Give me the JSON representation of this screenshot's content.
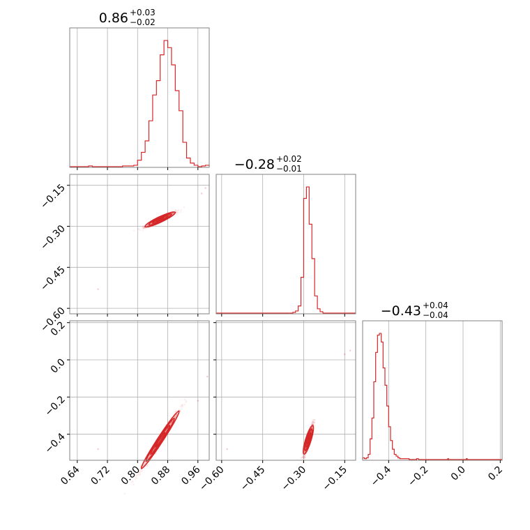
{
  "colors": {
    "accent": "#d62728",
    "grid": "#b0b0b0",
    "frame": "#808080"
  },
  "chart_data": {
    "type": "corner",
    "parameters": [
      {
        "title": {
          "main": "0.86",
          "plus": "+0.03",
          "minus": "−0.02"
        },
        "range": [
          0.62,
          0.99
        ],
        "ticks": [
          0.64,
          0.72,
          0.8,
          0.88,
          0.96
        ],
        "tick_labels": [
          "0.64",
          "0.72",
          "0.80",
          "0.88",
          "0.96"
        ],
        "hist": {
          "x": [
            0.625,
            0.635,
            0.645,
            0.655,
            0.665,
            0.675,
            0.685,
            0.695,
            0.705,
            0.715,
            0.725,
            0.735,
            0.745,
            0.755,
            0.765,
            0.775,
            0.785,
            0.795,
            0.805,
            0.815,
            0.825,
            0.835,
            0.845,
            0.855,
            0.865,
            0.875,
            0.885,
            0.895,
            0.905,
            0.915,
            0.925,
            0.935,
            0.945,
            0.955,
            0.965,
            0.975,
            0.985
          ],
          "y": [
            0,
            0,
            0,
            0,
            0,
            0.5,
            0,
            0,
            0,
            0,
            0,
            0,
            0,
            0,
            0.5,
            0.5,
            0.5,
            1,
            4.5,
            10,
            18,
            32,
            50,
            60,
            78,
            88,
            83,
            71,
            53,
            39,
            17,
            6,
            2.5,
            1,
            0,
            0.5,
            1
          ]
        }
      },
      {
        "title": {
          "main": "−0.28",
          "plus": "+0.02",
          "minus": "−0.01"
        },
        "range": [
          -0.62,
          -0.11
        ],
        "ticks": [
          -0.6,
          -0.45,
          -0.3,
          -0.15
        ],
        "tick_labels": [
          "−0.60",
          "−0.45",
          "−0.30",
          "−0.15"
        ],
        "tick_labels_y": [
          "−0.60",
          "−0.45",
          "−0.30",
          "−0.15"
        ],
        "hist": {
          "x": [
            -0.345,
            -0.335,
            -0.325,
            -0.315,
            -0.305,
            -0.295,
            -0.285,
            -0.275,
            -0.265,
            -0.255,
            -0.245,
            -0.235
          ],
          "y": [
            0,
            0.5,
            1.5,
            5,
            25,
            80,
            88,
            62,
            38,
            12,
            3,
            1
          ]
        }
      },
      {
        "title": {
          "main": "−0.43",
          "plus": "+0.04",
          "minus": "−0.04"
        },
        "range": [
          -0.54,
          0.21
        ],
        "ticks": [
          -0.4,
          -0.2,
          0.0,
          0.2
        ],
        "tick_labels": [
          "−0.4",
          "−0.2",
          "0.0",
          "0.2"
        ],
        "hist": {
          "x": [
            -0.535,
            -0.525,
            -0.515,
            -0.505,
            -0.495,
            -0.485,
            -0.475,
            -0.465,
            -0.455,
            -0.445,
            -0.435,
            -0.425,
            -0.415,
            -0.405,
            -0.395,
            -0.385,
            -0.375,
            -0.365,
            -0.355,
            -0.345,
            -0.335,
            -0.325,
            -0.315,
            -0.305,
            -0.295,
            -0.285,
            -0.275,
            -0.265,
            -0.255,
            -0.245
          ],
          "y": [
            1,
            0.5,
            1,
            3,
            12,
            24,
            45,
            62,
            72,
            73,
            68,
            53,
            43,
            31,
            19,
            11,
            6,
            3,
            2,
            1,
            0.5,
            0.5,
            0.5,
            0.5,
            0.5,
            0,
            0,
            0,
            0,
            0.5
          ]
        },
        "hist_extra": {
          "x": [
            -0.08,
            0.02
          ],
          "y": [
            0.5,
            0.5
          ]
        }
      }
    ],
    "scatter": [
      {
        "pair": [
          0,
          1
        ],
        "mean": [
          0.86,
          -0.275
        ],
        "sd_x": 0.02,
        "corr_slope": 0.65,
        "sd_perp": 0.004,
        "outliers": [
          [
            0.695,
            -0.53
          ],
          [
            0.98,
            -0.16
          ],
          [
            0.97,
            -0.18
          ]
        ]
      },
      {
        "pair": [
          0,
          2
        ],
        "mean": [
          0.86,
          -0.43
        ],
        "sd_x": 0.025,
        "corr_slope": 3.1,
        "sd_perp": 0.012,
        "outliers": [
          [
            0.695,
            -0.48
          ],
          [
            0.985,
            -0.09
          ],
          [
            0.96,
            -0.22
          ]
        ]
      },
      {
        "pair": [
          1,
          2
        ],
        "mean": [
          -0.283,
          -0.43
        ],
        "sd_x": 0.008,
        "corr_slope": 4.8,
        "sd_perp": 0.015,
        "outliers": [
          [
            -0.58,
            -0.48
          ],
          [
            -0.13,
            0.05
          ],
          [
            -0.15,
            0.03
          ]
        ]
      }
    ]
  }
}
